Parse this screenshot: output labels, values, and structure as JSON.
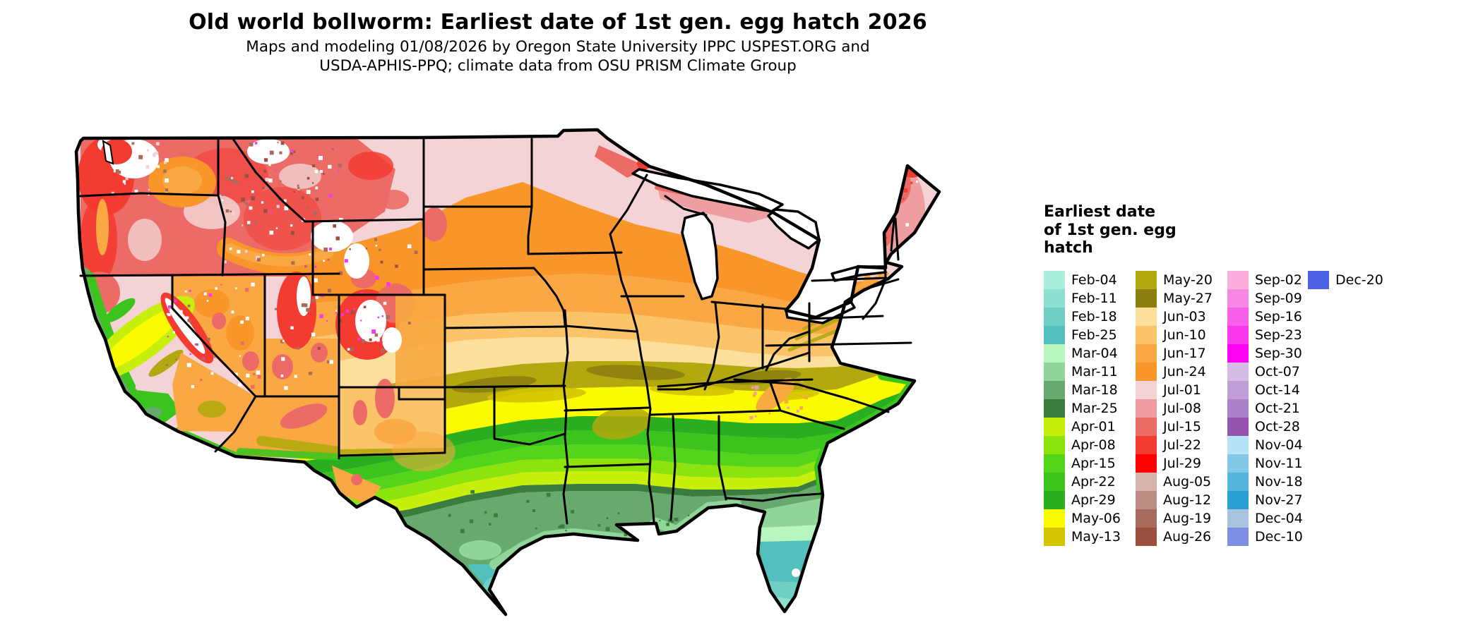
{
  "header": {
    "title": "Old world bollworm: Earliest date of 1st gen. egg hatch 2026",
    "subtitle_line1": "Maps and modeling 01/08/2026 by Oregon State University IPPC USPEST.ORG and",
    "subtitle_line2": "USDA-APHIS-PPQ; climate data from OSU PRISM Climate Group"
  },
  "legend": {
    "title_lines": [
      "Earliest date",
      "of 1st gen. egg",
      "hatch"
    ],
    "columns": [
      [
        {
          "label": "Feb-04",
          "color": "#aaeedd"
        },
        {
          "label": "Feb-11",
          "color": "#8ce0cf"
        },
        {
          "label": "Feb-18",
          "color": "#6fcfc6"
        },
        {
          "label": "Feb-25",
          "color": "#52c0bc"
        },
        {
          "label": "Mar-04",
          "color": "#b9f6bf"
        },
        {
          "label": "Mar-11",
          "color": "#91d699"
        },
        {
          "label": "Mar-18",
          "color": "#68a96d"
        },
        {
          "label": "Mar-25",
          "color": "#3a7d3f"
        },
        {
          "label": "Apr-01",
          "color": "#c6ef0c"
        },
        {
          "label": "Apr-08",
          "color": "#8ce40c"
        },
        {
          "label": "Apr-15",
          "color": "#55d41c"
        },
        {
          "label": "Apr-22",
          "color": "#3cc41e"
        },
        {
          "label": "Apr-29",
          "color": "#28ae1e"
        },
        {
          "label": "May-06",
          "color": "#fbfb00"
        },
        {
          "label": "May-13",
          "color": "#d3c400"
        }
      ],
      [
        {
          "label": "May-20",
          "color": "#b3a80e"
        },
        {
          "label": "May-27",
          "color": "#8b7f10"
        },
        {
          "label": "Jun-03",
          "color": "#fcdf9a"
        },
        {
          "label": "Jun-10",
          "color": "#fbc468"
        },
        {
          "label": "Jun-17",
          "color": "#faa843"
        },
        {
          "label": "Jun-24",
          "color": "#f9962a"
        },
        {
          "label": "Jul-01",
          "color": "#f3d3d5"
        },
        {
          "label": "Jul-08",
          "color": "#ee9da1"
        },
        {
          "label": "Jul-15",
          "color": "#ec6b66"
        },
        {
          "label": "Jul-22",
          "color": "#f43b31"
        },
        {
          "label": "Jul-29",
          "color": "#fe0000"
        },
        {
          "label": "Aug-05",
          "color": "#d8b2ac"
        },
        {
          "label": "Aug-12",
          "color": "#bc8d82"
        },
        {
          "label": "Aug-19",
          "color": "#a96c5c"
        },
        {
          "label": "Aug-26",
          "color": "#9b4f3f"
        }
      ],
      [
        {
          "label": "Sep-02",
          "color": "#fbaedd"
        },
        {
          "label": "Sep-09",
          "color": "#f987e4"
        },
        {
          "label": "Sep-16",
          "color": "#f85fe9"
        },
        {
          "label": "Sep-23",
          "color": "#f837ee"
        },
        {
          "label": "Sep-30",
          "color": "#fb02f1"
        },
        {
          "label": "Oct-07",
          "color": "#d5bce4"
        },
        {
          "label": "Oct-14",
          "color": "#bf9ed6"
        },
        {
          "label": "Oct-21",
          "color": "#ab82ca"
        },
        {
          "label": "Oct-28",
          "color": "#9454ae"
        },
        {
          "label": "Nov-04",
          "color": "#b5e4f8"
        },
        {
          "label": "Nov-11",
          "color": "#82c8e8"
        },
        {
          "label": "Nov-18",
          "color": "#55b4de"
        },
        {
          "label": "Nov-27",
          "color": "#29a0d4"
        },
        {
          "label": "Dec-04",
          "color": "#a9c4e0"
        },
        {
          "label": "Dec-10",
          "color": "#7e8ee2"
        }
      ],
      [
        {
          "label": "Dec-20",
          "color": "#4d5fe3"
        }
      ]
    ]
  },
  "map": {
    "region": "Continental United States",
    "state_border_color": "#000000",
    "background_color": "#ffffff"
  }
}
